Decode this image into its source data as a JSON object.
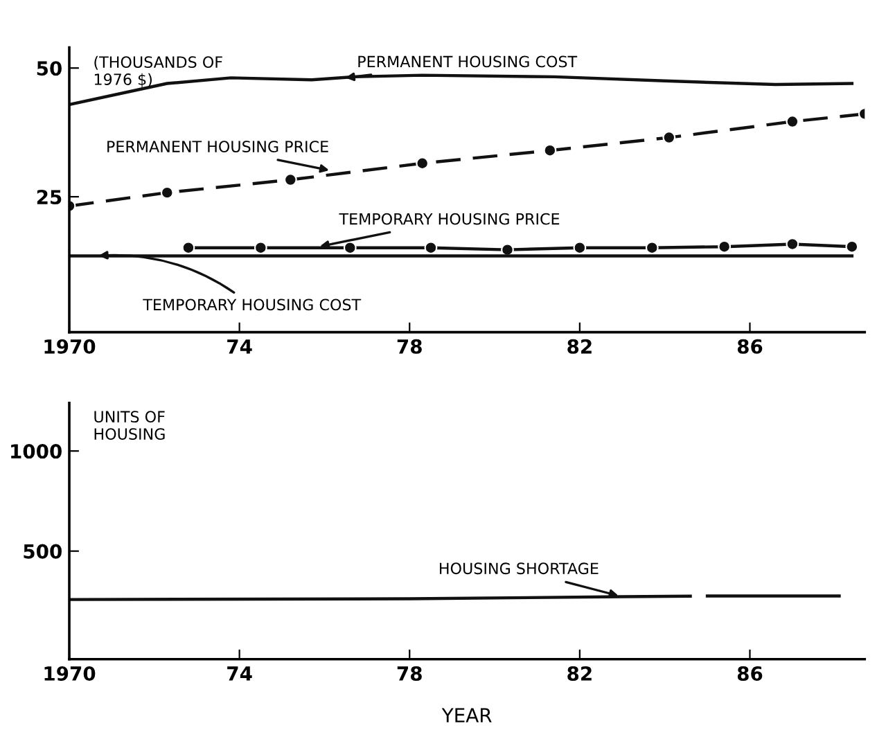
{
  "chart_data": [
    {
      "type": "line",
      "ylabel": "(THOUSANDS OF\n1976 $)",
      "xlim": [
        1970,
        1988.7
      ],
      "ylim": [
        -1.3,
        54
      ],
      "xticks": [
        1970,
        {
          "value": 1974,
          "label": "74"
        },
        {
          "value": 1978,
          "label": "78"
        },
        {
          "value": 1982,
          "label": "82"
        },
        {
          "value": 1986,
          "label": "86"
        }
      ],
      "yticks": [
        25,
        50
      ],
      "grid": false,
      "legend": false,
      "series": [
        {
          "color": "#111111",
          "line_style": "solid",
          "marker": "none",
          "x": [
            1970,
            1972.3,
            1973.8,
            1975.7,
            1976.7,
            1978.3,
            1981.4,
            1984,
            1986.6,
            1988.4
          ],
          "values": [
            42.9,
            47.0,
            48.1,
            47.7,
            48.3,
            48.6,
            48.3,
            47.5,
            46.8,
            47.0
          ]
        },
        {
          "color": "#111111",
          "line_style": "dashed",
          "marker": "circle",
          "x": [
            1970,
            1972.3,
            1975.2,
            1978.3,
            1981.3,
            1984.1,
            1987.0,
            1988.7
          ],
          "values": [
            23.2,
            25.8,
            28.3,
            31.5,
            34.0,
            36.5,
            39.6,
            41.1
          ]
        },
        {
          "color": "#111111",
          "line_style": "solid",
          "marker": "circle",
          "x": [
            1972.8,
            1974.5,
            1976.6,
            1978.5,
            1980.3,
            1982.0,
            1983.7,
            1985.4,
            1987.0,
            1988.4
          ],
          "values": [
            15.1,
            15.1,
            15.1,
            15.1,
            14.7,
            15.1,
            15.1,
            15.3,
            15.8,
            15.3
          ]
        },
        {
          "color": "#111111",
          "line_style": "solid",
          "marker": "none",
          "x": [
            1970,
            1988.4
          ],
          "values": [
            13.5,
            13.5
          ]
        }
      ],
      "annotations": [
        {
          "text": "PERMANENT HOUSING COST",
          "x": 1976.4,
          "y": 48.0
        },
        {
          "text": "PERMANENT HOUSING PRICE",
          "x": 1976.2,
          "y": 30.0
        },
        {
          "text": "TEMPORARY HOUSING PRICE",
          "x": 1975.8,
          "y": 15.2
        },
        {
          "text": "TEMPORARY HOUSING COST",
          "x": 1970.6,
          "y": 13.5
        }
      ]
    },
    {
      "type": "line",
      "ylabel": "UNITS OF\nHOUSING",
      "xlabel": "YEAR",
      "xlim": [
        1970,
        1988.7
      ],
      "ylim": [
        -40,
        1240
      ],
      "xticks": [
        1970,
        {
          "value": 1974,
          "label": "74"
        },
        {
          "value": 1978,
          "label": "78"
        },
        {
          "value": 1982,
          "label": "82"
        },
        {
          "value": 1986,
          "label": "86"
        }
      ],
      "yticks": [
        500,
        1000
      ],
      "grid": false,
      "legend": false,
      "series": [
        {
          "color": "#111111",
          "line_style": "solid",
          "marker": "none",
          "x": [
            1970,
            1978,
            1983,
            1984.6,
            1984.8,
            1985.0,
            1988.1
          ],
          "values": [
            258,
            262,
            272,
            275,
            null,
            276,
            276
          ]
        }
      ],
      "annotations": [
        {
          "text": "HOUSING SHORTAGE",
          "x": 1983,
          "y": 272
        }
      ]
    }
  ]
}
